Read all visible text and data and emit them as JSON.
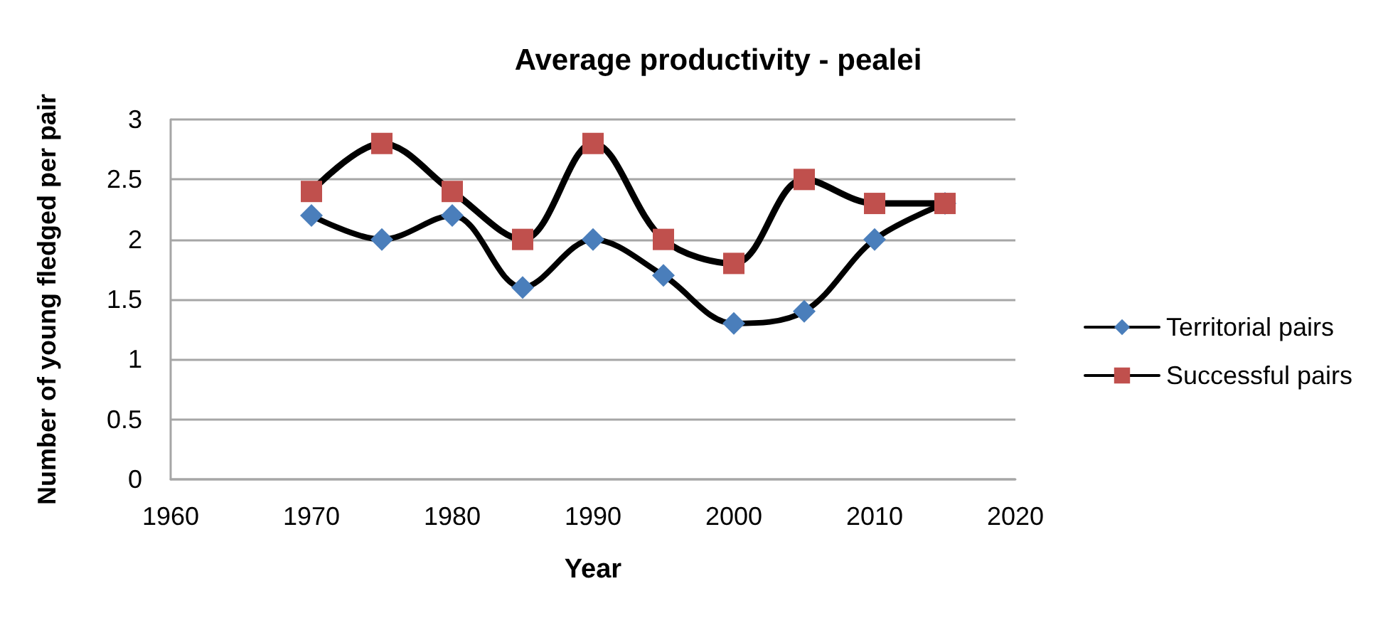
{
  "chart_data": {
    "type": "line",
    "title": "Average productivity - pealei",
    "xlabel": "Year",
    "ylabel": "Number of young fledged per pair",
    "x": [
      1970,
      1975,
      1980,
      1985,
      1990,
      1995,
      2000,
      2005,
      2010,
      2015
    ],
    "series": [
      {
        "name": "Territorial pairs",
        "color": "#4a7ebb",
        "marker": "diamond",
        "values": [
          2.2,
          2.0,
          2.2,
          1.6,
          2.0,
          1.7,
          1.3,
          1.4,
          2.0,
          2.3
        ]
      },
      {
        "name": "Successful pairs",
        "color": "#c0504d",
        "marker": "square",
        "values": [
          2.4,
          2.8,
          2.4,
          2.0,
          2.8,
          2.0,
          1.8,
          2.5,
          2.3,
          2.3
        ]
      }
    ],
    "xlim": [
      1960,
      2020
    ],
    "xticks": [
      1960,
      1970,
      1980,
      1990,
      2000,
      2010,
      2020
    ],
    "ylim": [
      0,
      3
    ],
    "yticks": [
      0,
      0.5,
      1,
      1.5,
      2,
      2.5,
      3
    ],
    "grid": "y",
    "legend": "right"
  }
}
